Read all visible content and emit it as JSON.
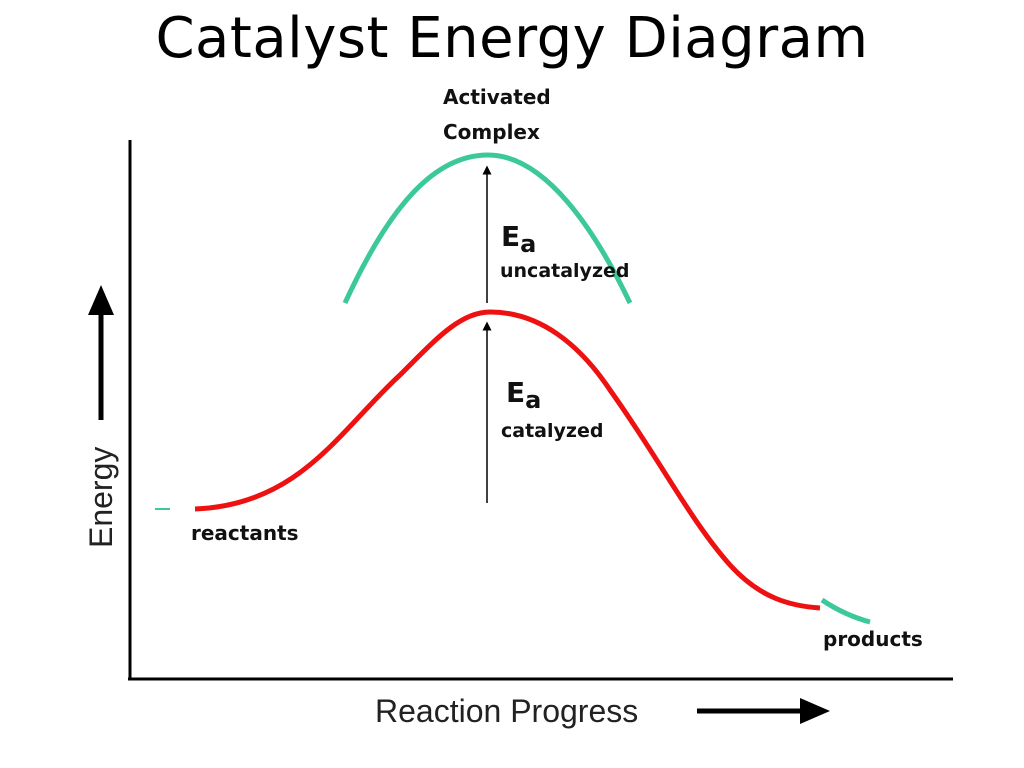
{
  "title": "Catalyst Energy Diagram",
  "labels": {
    "activated_line1": "Activated",
    "activated_line2": "Complex",
    "ea_symbol": "E",
    "ea_subscript": "a",
    "uncatalyzed": "uncatalyzed",
    "catalyzed": "catalyzed",
    "reactants": "reactants",
    "products": "products",
    "y_axis": "Energy",
    "x_axis": "Reaction Progress"
  },
  "colors": {
    "uncatalyzed_curve": "#3cc99a",
    "catalyzed_curve": "#ee1111",
    "axes": "#000000"
  }
}
